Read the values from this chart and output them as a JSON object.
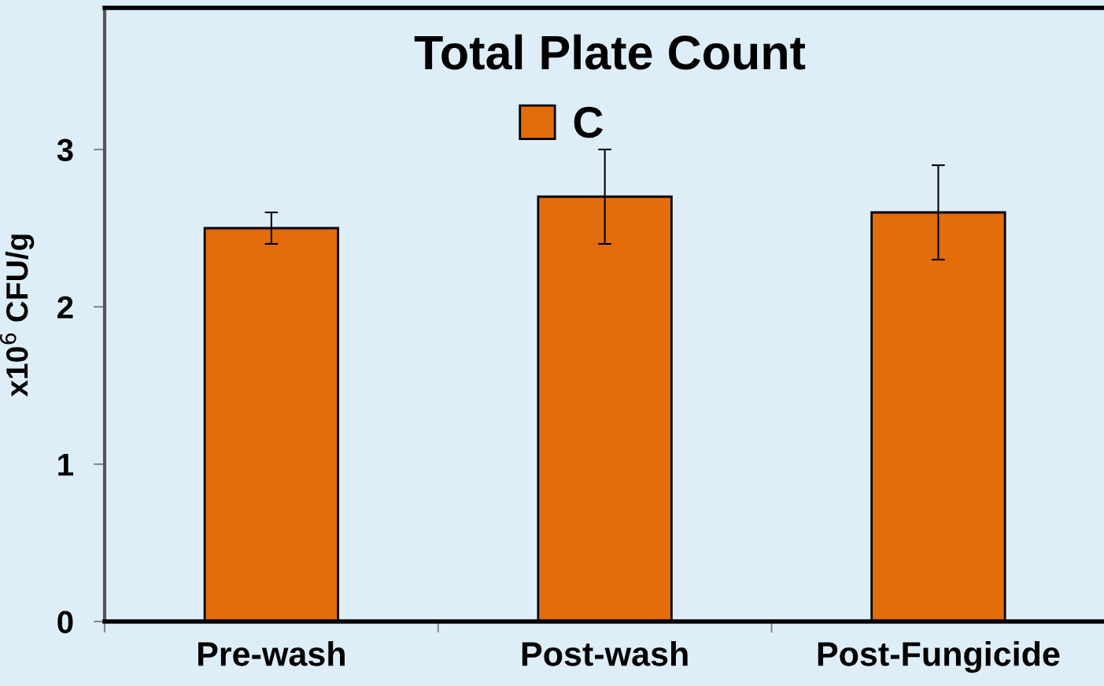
{
  "chart_data": {
    "type": "bar",
    "title": "Total Plate Count",
    "ylabel": "x10$^{6}$ CFU/g",
    "categories": [
      "Pre-wash",
      "Post-wash",
      "Post-Fungicide"
    ],
    "series": [
      {
        "name": "C",
        "color": "#e36c0a",
        "values": [
          2.5,
          2.7,
          2.6
        ],
        "errors": [
          0.1,
          0.3,
          0.3
        ]
      }
    ],
    "ylim": [
      0,
      3.9
    ],
    "yticks": [
      0,
      1,
      2,
      3
    ],
    "grid": false,
    "legend": "top"
  }
}
